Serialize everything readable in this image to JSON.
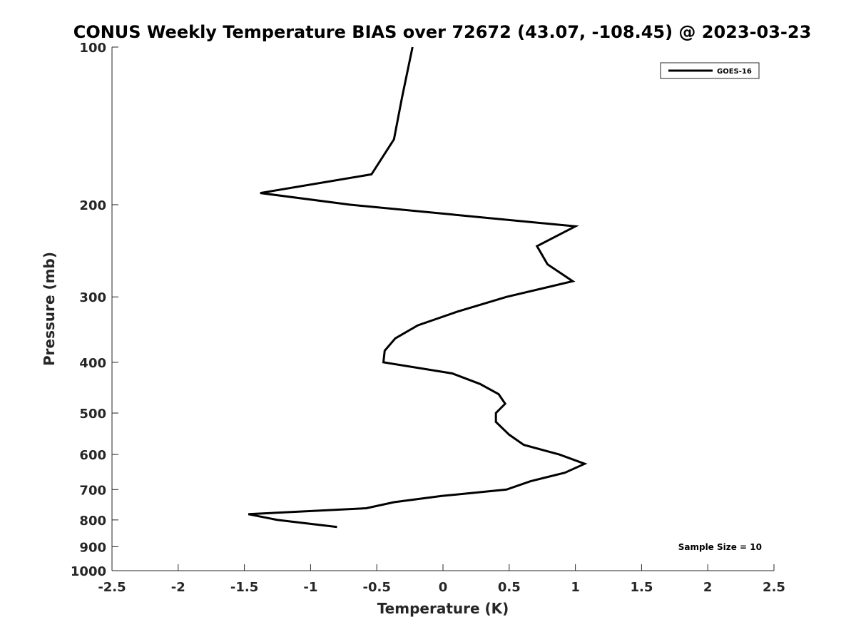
{
  "chart_data": {
    "type": "line",
    "title": "CONUS Weekly Temperature BIAS over 72672 (43.07, -108.45) @ 2023-03-23",
    "xlabel": "Temperature (K)",
    "ylabel": "Pressure (mb)",
    "xlim": [
      -2.5,
      2.5
    ],
    "ylim": [
      100,
      1000
    ],
    "y_scale": "log",
    "y_reversed": true,
    "x_ticks": [
      -2.5,
      -2,
      -1.5,
      -1,
      -0.5,
      0,
      0.5,
      1,
      1.5,
      2,
      2.5
    ],
    "x_tick_labels": [
      "-2.5",
      "-2",
      "-1.5",
      "-1",
      "-0.5",
      "0",
      "0.5",
      "1",
      "1.5",
      "2",
      "2.5"
    ],
    "y_ticks": [
      100,
      200,
      300,
      400,
      500,
      600,
      700,
      800,
      900,
      1000
    ],
    "y_tick_labels": [
      "100",
      "200",
      "300",
      "400",
      "500",
      "600",
      "700",
      "800",
      "900",
      "1000"
    ],
    "grid": false,
    "legend_position": "top-right",
    "series": [
      {
        "name": "GOES-16",
        "color": "#000000",
        "points": [
          {
            "x": -0.23,
            "p": 100
          },
          {
            "x": -0.31,
            "p": 125
          },
          {
            "x": -0.37,
            "p": 150
          },
          {
            "x": -0.54,
            "p": 175
          },
          {
            "x": -1.38,
            "p": 190
          },
          {
            "x": -0.7,
            "p": 200
          },
          {
            "x": 1.0,
            "p": 220
          },
          {
            "x": 0.71,
            "p": 240
          },
          {
            "x": 0.79,
            "p": 260
          },
          {
            "x": 0.98,
            "p": 280
          },
          {
            "x": 0.48,
            "p": 300
          },
          {
            "x": 0.11,
            "p": 320
          },
          {
            "x": -0.19,
            "p": 340
          },
          {
            "x": -0.36,
            "p": 360
          },
          {
            "x": -0.44,
            "p": 380
          },
          {
            "x": -0.45,
            "p": 400
          },
          {
            "x": 0.07,
            "p": 420
          },
          {
            "x": 0.28,
            "p": 440
          },
          {
            "x": 0.42,
            "p": 460
          },
          {
            "x": 0.47,
            "p": 480
          },
          {
            "x": 0.4,
            "p": 500
          },
          {
            "x": 0.4,
            "p": 520
          },
          {
            "x": 0.5,
            "p": 550
          },
          {
            "x": 0.61,
            "p": 575
          },
          {
            "x": 0.88,
            "p": 600
          },
          {
            "x": 1.07,
            "p": 625
          },
          {
            "x": 0.92,
            "p": 650
          },
          {
            "x": 0.66,
            "p": 675
          },
          {
            "x": 0.48,
            "p": 700
          },
          {
            "x": -0.01,
            "p": 720
          },
          {
            "x": -0.37,
            "p": 740
          },
          {
            "x": -0.58,
            "p": 760
          },
          {
            "x": -1.47,
            "p": 780
          },
          {
            "x": -1.25,
            "p": 800
          },
          {
            "x": -0.8,
            "p": 825
          }
        ]
      }
    ],
    "annotations": [
      {
        "text": "Sample Size = 10",
        "position": "bottom-right"
      }
    ]
  }
}
